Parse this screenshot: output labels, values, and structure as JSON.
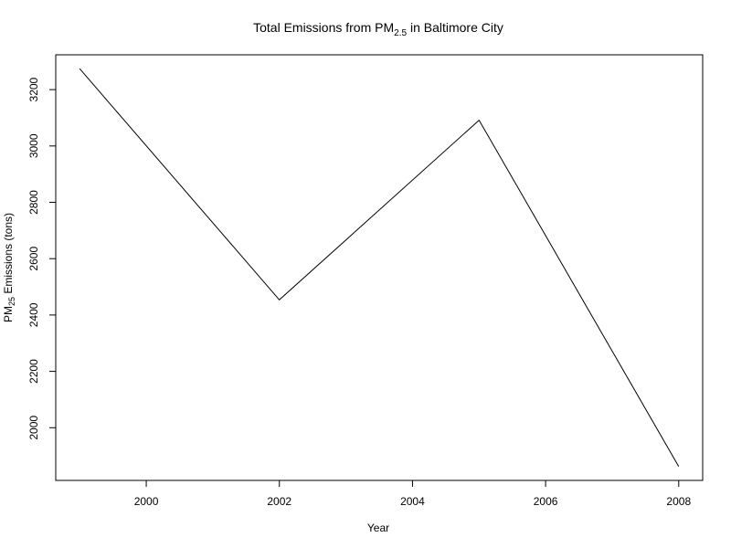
{
  "chart_data": {
    "type": "line",
    "title": {
      "prefix": "Total Emissions from ",
      "base": "PM",
      "sub": "2.5",
      "suffix": " in Baltimore City"
    },
    "xlabel": "Year",
    "ylabel": {
      "base": "PM",
      "sub": "25",
      "suffix": " Emissions (tons)"
    },
    "x": [
      1999,
      2002,
      2005,
      2008
    ],
    "series": [
      {
        "values": [
          3274.2,
          2453.9,
          3091.4,
          1862.3
        ]
      }
    ],
    "xlim": [
      1998.64,
      2008.36
    ],
    "ylim": [
      1812.9,
      3323.6
    ],
    "xticks": [
      2000,
      2002,
      2004,
      2006,
      2008
    ],
    "yticks": [
      2000,
      2200,
      2400,
      2600,
      2800,
      3000,
      3200
    ],
    "grid": false,
    "line_color": "#000000"
  }
}
